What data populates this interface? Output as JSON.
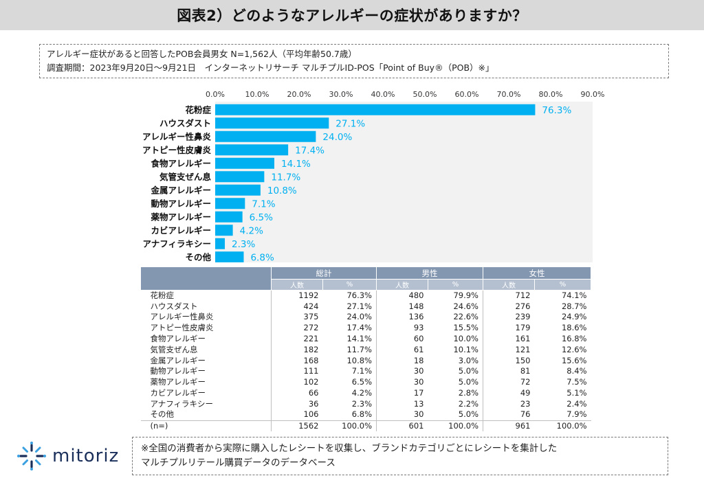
{
  "title": "図表2）どのようなアレルギーの症状がありますか？",
  "info": {
    "line1": "アレルギー症状があると回答したPOB会員男女 N=1,562人（平均年齢50.7歳）",
    "line2": "調査期間：2023年9月20日～9月21日　インターネットリサーチ マルチプルID-POS「Point of Buy®（POB）※」"
  },
  "chart_data": {
    "type": "bar",
    "orientation": "horizontal",
    "categories": [
      "花粉症",
      "ハウスダスト",
      "アレルギー性鼻炎",
      "アトピー性皮膚炎",
      "食物アレルギー",
      "気管支ぜん息",
      "金属アレルギー",
      "動物アレルギー",
      "薬物アレルギー",
      "カビアレルギー",
      "アナフィラキシー",
      "その他"
    ],
    "values": [
      76.3,
      27.1,
      24.0,
      17.4,
      14.1,
      11.7,
      10.8,
      7.1,
      6.5,
      4.2,
      2.3,
      6.8
    ],
    "value_labels": [
      "76.3%",
      "27.1%",
      "24.0%",
      "17.4%",
      "14.1%",
      "11.7%",
      "10.8%",
      "7.1%",
      "6.5%",
      "4.2%",
      "2.3%",
      "6.8%"
    ],
    "ticks": [
      "0.0%",
      "10.0%",
      "20.0%",
      "30.0%",
      "40.0%",
      "50.0%",
      "60.0%",
      "70.0%",
      "80.0%",
      "90.0%"
    ],
    "xlim": [
      0,
      90
    ],
    "axis_position": "top",
    "bar_color": "#00b0f0",
    "label_color": "#00b0f0",
    "plot_bg": "#f2f2f2"
  },
  "table": {
    "group_headers": [
      "総計",
      "男性",
      "女性"
    ],
    "sub_headers": [
      "人数",
      "%",
      "人数",
      "%",
      "人数",
      "%"
    ],
    "rows": [
      {
        "label": "花粉症",
        "cells": [
          "1192",
          "76.3%",
          "480",
          "79.9%",
          "712",
          "74.1%"
        ]
      },
      {
        "label": "ハウスダスト",
        "cells": [
          "424",
          "27.1%",
          "148",
          "24.6%",
          "276",
          "28.7%"
        ]
      },
      {
        "label": "アレルギー性鼻炎",
        "cells": [
          "375",
          "24.0%",
          "136",
          "22.6%",
          "239",
          "24.9%"
        ]
      },
      {
        "label": "アトピー性皮膚炎",
        "cells": [
          "272",
          "17.4%",
          "93",
          "15.5%",
          "179",
          "18.6%"
        ]
      },
      {
        "label": "食物アレルギー",
        "cells": [
          "221",
          "14.1%",
          "60",
          "10.0%",
          "161",
          "16.8%"
        ]
      },
      {
        "label": "気管支ぜん息",
        "cells": [
          "182",
          "11.7%",
          "61",
          "10.1%",
          "121",
          "12.6%"
        ]
      },
      {
        "label": "金属アレルギー",
        "cells": [
          "168",
          "10.8%",
          "18",
          "3.0%",
          "150",
          "15.6%"
        ]
      },
      {
        "label": "動物アレルギー",
        "cells": [
          "111",
          "7.1%",
          "30",
          "5.0%",
          "81",
          "8.4%"
        ]
      },
      {
        "label": "薬物アレルギー",
        "cells": [
          "102",
          "6.5%",
          "30",
          "5.0%",
          "72",
          "7.5%"
        ]
      },
      {
        "label": "カビアレルギー",
        "cells": [
          "66",
          "4.2%",
          "17",
          "2.8%",
          "49",
          "5.1%"
        ]
      },
      {
        "label": "アナフィラキシー",
        "cells": [
          "36",
          "2.3%",
          "13",
          "2.2%",
          "23",
          "2.4%"
        ]
      },
      {
        "label": "その他",
        "cells": [
          "106",
          "6.8%",
          "30",
          "5.0%",
          "76",
          "7.9%"
        ]
      },
      {
        "label": "(n=)",
        "cells": [
          "1562",
          "100.0%",
          "601",
          "100.0%",
          "961",
          "100.0%"
        ]
      }
    ],
    "header_color": "#8497b0",
    "subheader_color": "#b4c0d0"
  },
  "logo": {
    "text": "mitoriz",
    "icon": "sparkle-logo-icon",
    "color": "#1a2f5a",
    "accent": "#3aa0e0"
  },
  "note": {
    "line1": "※全国の消費者から実際に購入したレシートを収集し、ブランドカテゴリごとにレシートを集計した",
    "line2": "マルチプルリテール購買データのデータベース"
  }
}
